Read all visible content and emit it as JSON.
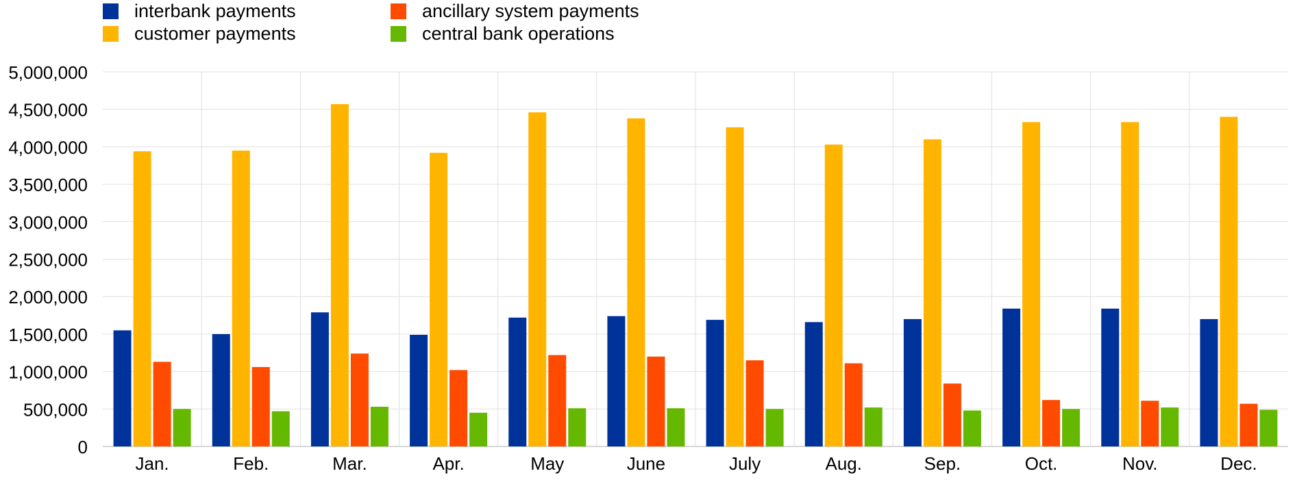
{
  "chart_data": {
    "type": "bar",
    "title": "",
    "xlabel": "",
    "ylabel": "",
    "ylim": [
      0,
      5000000
    ],
    "y_ticks": [
      0,
      500000,
      1000000,
      1500000,
      2000000,
      2500000,
      3000000,
      3500000,
      4000000,
      4500000,
      5000000
    ],
    "y_tick_labels": [
      "0",
      "500,000",
      "1,000,000",
      "1,500,000",
      "2,000,000",
      "2,500,000",
      "3,000,000",
      "3,500,000",
      "4,000,000",
      "4,500,000",
      "5,000,000"
    ],
    "grid": true,
    "legend_position": "top-left",
    "categories": [
      "Jan.",
      "Feb.",
      "Mar.",
      "Apr.",
      "May",
      "June",
      "July",
      "Aug.",
      "Sep.",
      "Oct.",
      "Nov.",
      "Dec."
    ],
    "series": [
      {
        "name": "interbank payments",
        "color": "#003399",
        "values": [
          1550000,
          1500000,
          1790000,
          1490000,
          1720000,
          1740000,
          1690000,
          1660000,
          1700000,
          1840000,
          1840000,
          1700000
        ]
      },
      {
        "name": "customer payments",
        "color": "#FFB400",
        "values": [
          3940000,
          3950000,
          4570000,
          3920000,
          4460000,
          4380000,
          4260000,
          4030000,
          4100000,
          4330000,
          4330000,
          4400000
        ]
      },
      {
        "name": "ancillary system payments",
        "color": "#FF4B00",
        "values": [
          1130000,
          1060000,
          1240000,
          1020000,
          1220000,
          1200000,
          1150000,
          1110000,
          840000,
          620000,
          610000,
          570000
        ]
      },
      {
        "name": "central bank operations",
        "color": "#65B800",
        "values": [
          500000,
          470000,
          530000,
          450000,
          510000,
          510000,
          500000,
          520000,
          480000,
          500000,
          520000,
          490000
        ]
      }
    ]
  }
}
